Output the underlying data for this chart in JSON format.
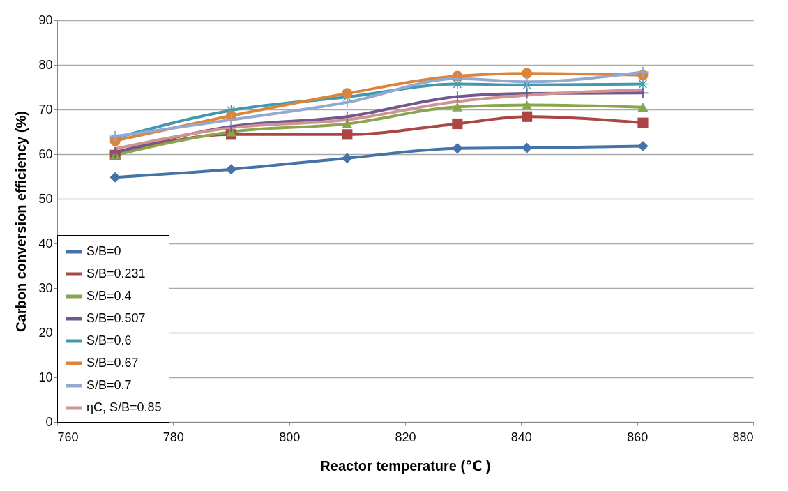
{
  "chart_data": {
    "type": "line",
    "xlabel": "Reactor temperature  (℃ )",
    "ylabel": "Carbon  conversion efficiency (%)",
    "x": [
      770,
      790,
      810,
      829,
      841,
      861
    ],
    "xlim": [
      760,
      880
    ],
    "xticks": [
      760,
      780,
      800,
      820,
      840,
      860,
      880
    ],
    "ylim": [
      0,
      90
    ],
    "yticks": [
      0,
      10,
      20,
      30,
      40,
      50,
      60,
      70,
      80,
      90
    ],
    "grid": "y",
    "legend": "bottom left",
    "line_style": "solid",
    "series": [
      {
        "name": "S/B=0",
        "color": "#4572a7",
        "marker": "diamond",
        "values": [
          54.8,
          56.6,
          59.1,
          61.3,
          61.4,
          61.8
        ]
      },
      {
        "name": "S/B=0.231",
        "color": "#aa4643",
        "marker": "square",
        "values": [
          59.8,
          64.4,
          64.4,
          66.8,
          68.4,
          67.0
        ]
      },
      {
        "name": "S/B=0.4",
        "color": "#89a54e",
        "marker": "triangle",
        "values": [
          59.8,
          65.0,
          66.8,
          70.6,
          71.0,
          70.5
        ]
      },
      {
        "name": " S/B=0.507",
        "color": "#71588f",
        "marker": "cross",
        "values": [
          60.4,
          66.2,
          68.4,
          72.9,
          73.6,
          73.7
        ]
      },
      {
        "name": "S/B=0.6",
        "color": "#4198af",
        "marker": "star",
        "values": [
          63.6,
          69.8,
          72.8,
          75.7,
          75.5,
          75.7
        ]
      },
      {
        "name": "S/B=0.67",
        "color": "#db843d",
        "marker": "circle",
        "values": [
          63.0,
          68.6,
          73.6,
          77.5,
          78.1,
          77.7
        ]
      },
      {
        "name": " S/B=0.7",
        "color": "#93a9cf",
        "marker": "cross",
        "values": [
          64.0,
          67.7,
          71.6,
          76.9,
          76.2,
          78.4
        ]
      },
      {
        "name": "ηC, S/B=0.85",
        "color": "#d19392",
        "marker": "none",
        "values": [
          61.2,
          65.9,
          67.7,
          71.8,
          73.2,
          74.4
        ]
      }
    ]
  }
}
